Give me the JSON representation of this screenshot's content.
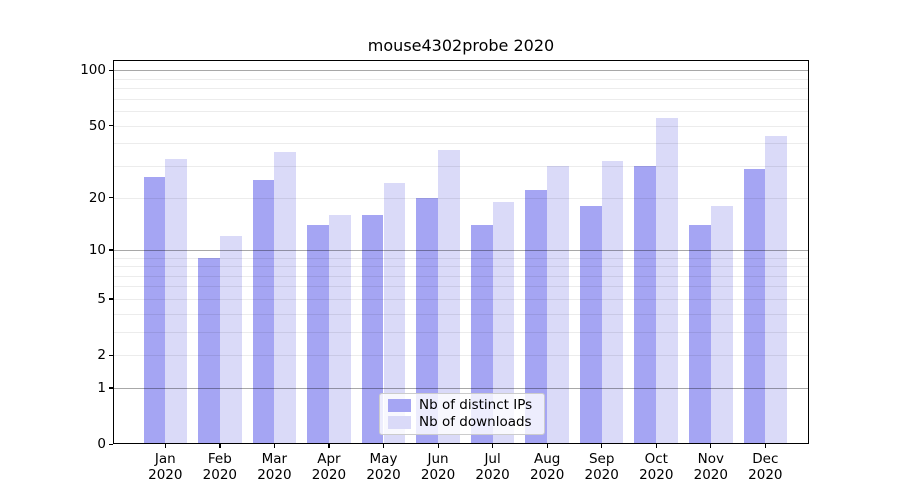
{
  "title": "mouse4302probe 2020",
  "chart_data": {
    "type": "bar",
    "title": "mouse4302probe 2020",
    "categories": [
      "Jan",
      "Feb",
      "Mar",
      "Apr",
      "May",
      "Jun",
      "Jul",
      "Aug",
      "Sep",
      "Oct",
      "Nov",
      "Dec"
    ],
    "category_year": "2020",
    "series": [
      {
        "name": "Nb of distinct IPs",
        "color": "#a5a5f3",
        "values": [
          26,
          9,
          25,
          14,
          16,
          20,
          14,
          22,
          18,
          30,
          14,
          29
        ]
      },
      {
        "name": "Nb of downloads",
        "color": "#dadaf8",
        "values": [
          33,
          12,
          36,
          16,
          24,
          37,
          19,
          30,
          32,
          55,
          18,
          44
        ]
      }
    ],
    "y_scale": "log10(1+v)",
    "y_ticks": [
      0,
      1,
      2,
      5,
      10,
      20,
      50,
      100
    ],
    "y_major_gridlines": [
      1,
      10,
      100
    ],
    "y_minor_gridlines": [
      2,
      3,
      4,
      5,
      6,
      7,
      8,
      9,
      20,
      30,
      40,
      50,
      60,
      70,
      80,
      90
    ],
    "ylim": [
      0,
      114
    ],
    "xlabel": "",
    "ylabel": "",
    "grid": true,
    "legend_position": "lower center"
  },
  "colors": {
    "ips_bar": "#a5a5f3",
    "downloads_bar": "#dadaf8",
    "background": "#ffffff",
    "axis": "#000000",
    "legend_border": "#cccccc"
  }
}
